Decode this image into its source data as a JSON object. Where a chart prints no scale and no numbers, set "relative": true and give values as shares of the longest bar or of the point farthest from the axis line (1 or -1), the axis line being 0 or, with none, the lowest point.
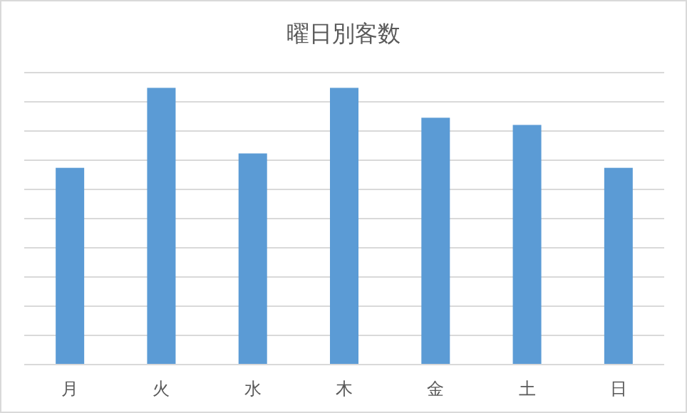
{
  "chart_data": {
    "type": "bar",
    "title": "曜日別客数",
    "relative": true,
    "categories": [
      "月",
      "火",
      "水",
      "木",
      "金",
      "土",
      "日"
    ],
    "values": [
      0.711,
      1,
      0.763,
      1,
      0.892,
      0.866,
      0.711
    ],
    "color": "#5b9bd5",
    "grid": "y"
  }
}
